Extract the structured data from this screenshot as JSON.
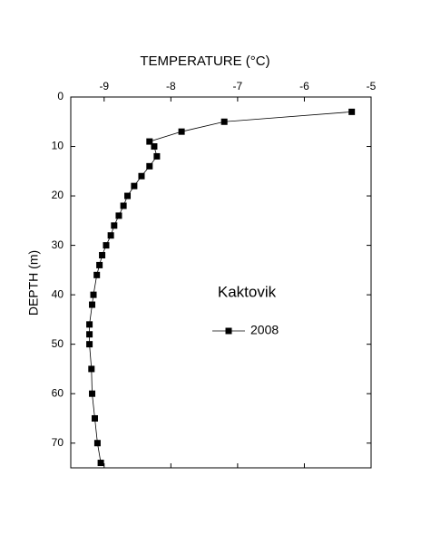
{
  "chart_data": {
    "type": "line",
    "title": "TEMPERATURE (°C)",
    "y_label": "DEPTH (m)",
    "annotation": "Kaktovik",
    "xlim": [
      -9.5,
      -5
    ],
    "xticks": [
      -9,
      -8,
      -7,
      -6,
      -5
    ],
    "ylim": [
      0,
      75
    ],
    "yticks": [
      0,
      10,
      20,
      30,
      40,
      50,
      60,
      70
    ],
    "y_inverted": true,
    "x_axis_position": "top",
    "series": [
      {
        "name": "2008",
        "color": "#000000",
        "x": [
          -5.29,
          -7.2,
          -7.84,
          -8.32,
          -8.25,
          -8.21,
          -8.32,
          -8.44,
          -8.55,
          -8.65,
          -8.71,
          -8.78,
          -8.85,
          -8.9,
          -8.97,
          -9.03,
          -9.07,
          -9.11,
          -9.16,
          -9.18,
          -9.22,
          -9.22,
          -9.22,
          -9.19,
          -9.18,
          -9.14,
          -9.1,
          -9.05
        ],
        "values": [
          3,
          5,
          7,
          9,
          10,
          12,
          14,
          16,
          18,
          20,
          22,
          24,
          26,
          28,
          30,
          32,
          34,
          36,
          40,
          42,
          46,
          48,
          50,
          55,
          60,
          65,
          70,
          74
        ]
      }
    ]
  }
}
